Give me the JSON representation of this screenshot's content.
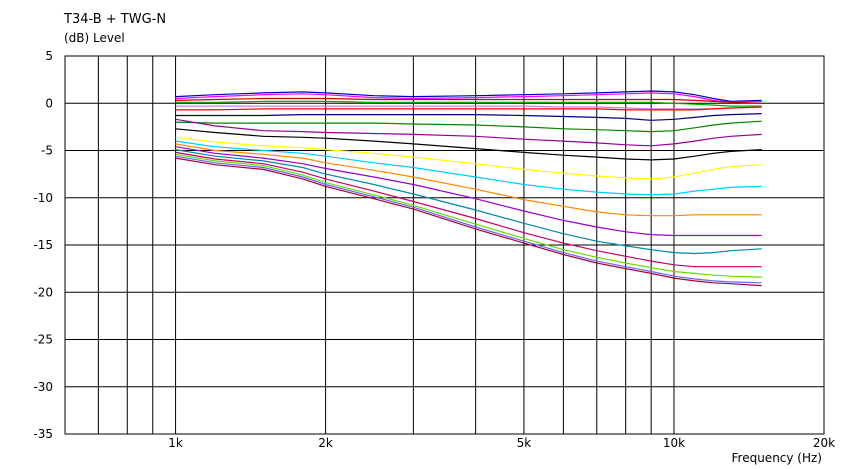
{
  "chart_data": {
    "type": "line",
    "title": "T34-B + TWG-N",
    "ylabel": "(dB)  Level",
    "xlabel": "Frequency  (Hz)",
    "x_scale": "log",
    "xlim": [
      600,
      20000
    ],
    "ylim": [
      -35,
      5
    ],
    "grid": true,
    "yticks": [
      5,
      0,
      -5,
      -10,
      -15,
      -20,
      -25,
      -30,
      -35
    ],
    "xticks": [
      {
        "value": 1000,
        "label": "1k"
      },
      {
        "value": 2000,
        "label": "2k"
      },
      {
        "value": 5000,
        "label": "5k"
      },
      {
        "value": 10000,
        "label": "10k"
      },
      {
        "value": 20000,
        "label": "20k"
      }
    ],
    "minor_x_gridlines": [
      700,
      800,
      900,
      3000,
      4000,
      6000,
      7000,
      8000,
      9000
    ],
    "x": [
      1000,
      1200,
      1500,
      1800,
      2000,
      2500,
      3000,
      4000,
      5000,
      6000,
      7000,
      8000,
      9000,
      10000,
      11000,
      12000,
      13000,
      15000
    ],
    "series": [
      {
        "color": "#0000cc",
        "values": [
          0.7,
          0.9,
          1.1,
          1.2,
          1.1,
          0.8,
          0.7,
          0.8,
          0.9,
          1.0,
          1.1,
          1.2,
          1.3,
          1.2,
          0.9,
          0.5,
          0.2,
          0.3
        ]
      },
      {
        "color": "#ff00ff",
        "values": [
          0.5,
          0.7,
          0.9,
          1.0,
          0.9,
          0.6,
          0.5,
          0.6,
          0.7,
          0.8,
          0.9,
          1.0,
          1.1,
          1.0,
          0.7,
          0.3,
          0.1,
          0.2
        ]
      },
      {
        "color": "#cc0000",
        "values": [
          0.3,
          0.4,
          0.5,
          0.5,
          0.5,
          0.4,
          0.4,
          0.4,
          0.4,
          0.4,
          0.4,
          0.4,
          0.4,
          0.4,
          0.3,
          0.2,
          0.1,
          0.0
        ]
      },
      {
        "color": "#00aa00",
        "values": [
          0.1,
          0.1,
          0.2,
          0.2,
          0.2,
          0.1,
          0.1,
          0.1,
          0.1,
          0.1,
          0.1,
          0.1,
          0.1,
          0.0,
          -0.1,
          -0.2,
          -0.3,
          -0.3
        ]
      },
      {
        "color": "#bb88dd",
        "values": [
          -0.3,
          -0.3,
          -0.3,
          -0.3,
          -0.3,
          -0.3,
          -0.3,
          -0.3,
          -0.3,
          -0.4,
          -0.4,
          -0.5,
          -0.6,
          -0.6,
          -0.6,
          -0.6,
          -0.5,
          -0.4
        ]
      },
      {
        "color": "#ff0000",
        "values": [
          -0.7,
          -0.7,
          -0.6,
          -0.6,
          -0.6,
          -0.6,
          -0.6,
          -0.6,
          -0.6,
          -0.6,
          -0.6,
          -0.7,
          -0.7,
          -0.7,
          -0.7,
          -0.6,
          -0.5,
          -0.4
        ]
      },
      {
        "color": "#000080",
        "values": [
          -1.3,
          -1.3,
          -1.3,
          -1.2,
          -1.2,
          -1.2,
          -1.2,
          -1.2,
          -1.3,
          -1.4,
          -1.5,
          -1.6,
          -1.8,
          -1.7,
          -1.5,
          -1.3,
          -1.2,
          -1.1
        ]
      },
      {
        "color": "#008800",
        "values": [
          -2.0,
          -2.1,
          -2.1,
          -2.1,
          -2.1,
          -2.1,
          -2.2,
          -2.3,
          -2.5,
          -2.7,
          -2.8,
          -2.9,
          -3.0,
          -2.9,
          -2.6,
          -2.3,
          -2.1,
          -1.9
        ]
      },
      {
        "color": "#990099",
        "values": [
          -1.7,
          -2.4,
          -2.9,
          -3.0,
          -3.1,
          -3.2,
          -3.3,
          -3.5,
          -3.8,
          -4.0,
          -4.2,
          -4.4,
          -4.5,
          -4.3,
          -4.0,
          -3.7,
          -3.5,
          -3.3
        ]
      },
      {
        "color": "#000000",
        "values": [
          -2.7,
          -3.1,
          -3.5,
          -3.6,
          -3.7,
          -4.0,
          -4.3,
          -4.8,
          -5.2,
          -5.5,
          -5.7,
          -5.9,
          -6.0,
          -5.9,
          -5.6,
          -5.3,
          -5.1,
          -4.9
        ]
      },
      {
        "color": "#ffff00",
        "values": [
          -3.6,
          -4.1,
          -4.5,
          -4.7,
          -4.9,
          -5.3,
          -5.7,
          -6.4,
          -7.0,
          -7.4,
          -7.7,
          -7.9,
          -8.0,
          -7.8,
          -7.4,
          -7.0,
          -6.7,
          -6.5
        ]
      },
      {
        "color": "#00ccff",
        "values": [
          -4.0,
          -4.6,
          -5.0,
          -5.3,
          -5.6,
          -6.3,
          -6.8,
          -7.8,
          -8.6,
          -9.1,
          -9.4,
          -9.6,
          -9.7,
          -9.6,
          -9.3,
          -9.1,
          -8.9,
          -8.8
        ]
      },
      {
        "color": "#ff8800",
        "values": [
          -4.3,
          -5.0,
          -5.4,
          -5.8,
          -6.3,
          -7.1,
          -7.8,
          -9.1,
          -10.2,
          -10.9,
          -11.5,
          -11.8,
          -11.9,
          -11.9,
          -11.8,
          -11.8,
          -11.8,
          -11.8
        ]
      },
      {
        "color": "#9900cc",
        "values": [
          -4.6,
          -5.3,
          -5.8,
          -6.4,
          -6.9,
          -7.8,
          -8.6,
          -10.1,
          -11.4,
          -12.4,
          -13.1,
          -13.6,
          -13.9,
          -14.0,
          -14.0,
          -14.0,
          -14.0,
          -14.0
        ]
      },
      {
        "color": "#0088aa",
        "values": [
          -4.9,
          -5.6,
          -6.1,
          -6.8,
          -7.5,
          -8.6,
          -9.6,
          -11.3,
          -12.7,
          -13.8,
          -14.6,
          -15.1,
          -15.5,
          -15.8,
          -15.9,
          -15.8,
          -15.6,
          -15.4
        ]
      },
      {
        "color": "#cc0066",
        "values": [
          -5.2,
          -5.9,
          -6.4,
          -7.3,
          -8.0,
          -9.3,
          -10.4,
          -12.2,
          -13.7,
          -14.8,
          -15.6,
          -16.2,
          -16.7,
          -17.1,
          -17.3,
          -17.3,
          -17.3,
          -17.3
        ]
      },
      {
        "color": "#66dd00",
        "values": [
          -5.4,
          -6.1,
          -6.6,
          -7.6,
          -8.4,
          -9.7,
          -10.8,
          -12.8,
          -14.3,
          -15.5,
          -16.3,
          -16.9,
          -17.4,
          -17.8,
          -18.0,
          -18.2,
          -18.3,
          -18.4
        ]
      },
      {
        "color": "#6666ff",
        "values": [
          -5.6,
          -6.3,
          -6.8,
          -7.8,
          -8.6,
          -9.9,
          -11.0,
          -13.1,
          -14.6,
          -15.8,
          -16.7,
          -17.3,
          -17.8,
          -18.3,
          -18.6,
          -18.8,
          -18.9,
          -19.0
        ]
      },
      {
        "color": "#aa0033",
        "values": [
          -5.8,
          -6.5,
          -7.0,
          -8.0,
          -8.8,
          -10.1,
          -11.2,
          -13.3,
          -14.8,
          -16.0,
          -16.9,
          -17.5,
          -18.0,
          -18.5,
          -18.8,
          -19.0,
          -19.1,
          -19.3
        ]
      }
    ]
  }
}
